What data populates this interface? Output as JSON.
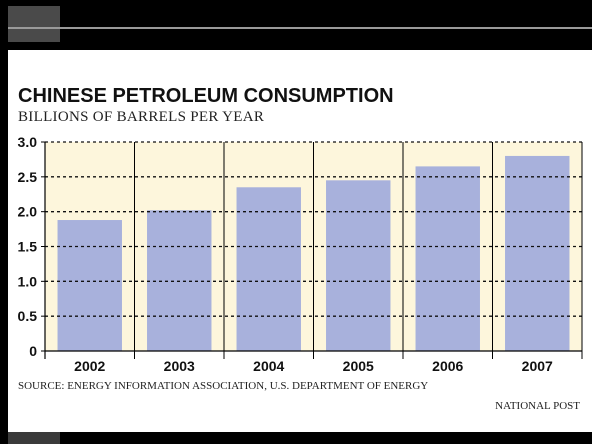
{
  "chart_data": {
    "type": "bar",
    "title": "CHINESE PETROLEUM CONSUMPTION",
    "subtitle": "BILLIONS OF BARRELS PER YEAR",
    "xlabel": "",
    "ylabel": "",
    "categories": [
      "2002",
      "2003",
      "2004",
      "2005",
      "2006",
      "2007"
    ],
    "values": [
      1.88,
      2.02,
      2.35,
      2.45,
      2.65,
      2.8
    ],
    "ylim": [
      0,
      3.0
    ],
    "yticks": [
      "0",
      "0.5",
      "1.0",
      "1.5",
      "2.0",
      "2.5",
      "3.0"
    ],
    "grid": true,
    "legend": "none"
  },
  "footer": {
    "source": "SOURCE: ENERGY INFORMATION ASSOCIATION, U.S. DEPARTMENT OF ENERGY",
    "credit": "NATIONAL POST"
  },
  "colors": {
    "bar": "#a8b1dc",
    "plot_background": "#fdf6dc",
    "gridline": "#111111",
    "frame": "#000000"
  }
}
